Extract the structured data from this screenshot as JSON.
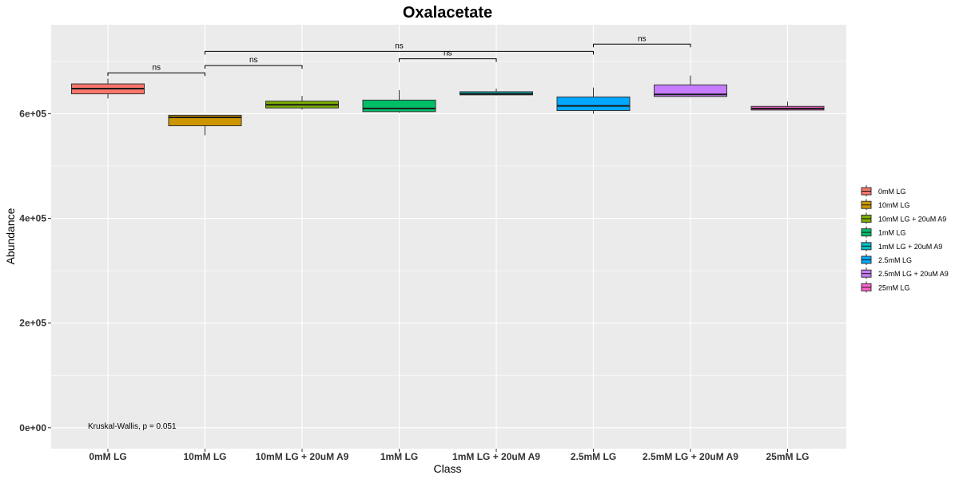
{
  "chart_data": {
    "type": "box",
    "title": "Oxalacetate",
    "xlabel": "Class",
    "ylabel": "Abundance",
    "ylim": [
      -40000,
      770000
    ],
    "y_ticks": [
      0,
      200000,
      400000,
      600000
    ],
    "y_tick_labels": [
      "0e+00",
      "2e+05",
      "4e+05",
      "6e+05"
    ],
    "grid": true,
    "legend_position": "right",
    "categories": [
      "0mM LG",
      "10mM LG",
      "10mM LG + 20uM A9",
      "1mM LG",
      "1mM LG + 20uM A9",
      "2.5mM LG",
      "2.5mM LG + 20uM A9",
      "25mM LG"
    ],
    "series": [
      {
        "name": "0mM LG",
        "color": "#F8766D",
        "min": 629000,
        "q1": 638000,
        "median": 648000,
        "q3": 657000,
        "max": 667000
      },
      {
        "name": "10mM LG",
        "color": "#CD9600",
        "min": 559000,
        "q1": 577000,
        "median": 593000,
        "q3": 597000,
        "max": 598000
      },
      {
        "name": "10mM LG + 20uM A9",
        "color": "#7CAE00",
        "min": 608000,
        "q1": 611000,
        "median": 617000,
        "q3": 624000,
        "max": 634000
      },
      {
        "name": "1mM LG",
        "color": "#00BE67",
        "min": 602000,
        "q1": 604000,
        "median": 610000,
        "q3": 626000,
        "max": 645000
      },
      {
        "name": "1mM LG + 20uM A9",
        "color": "#00BFC4",
        "min": 635000,
        "q1": 636000,
        "median": 638000,
        "q3": 642000,
        "max": 648000
      },
      {
        "name": "2.5mM LG",
        "color": "#00A9FF",
        "min": 600000,
        "q1": 606000,
        "median": 615000,
        "q3": 632000,
        "max": 650000
      },
      {
        "name": "2.5mM LG + 20uM A9",
        "color": "#C77CFF",
        "min": 632000,
        "q1": 633000,
        "median": 637000,
        "q3": 655000,
        "max": 673000
      },
      {
        "name": "25mM LG",
        "color": "#FF61CC",
        "min": 606000,
        "q1": 607000,
        "median": 610000,
        "q3": 614000,
        "max": 623000
      }
    ],
    "comparisons": [
      {
        "from": 0,
        "to": 1,
        "y": 678000,
        "label": "ns"
      },
      {
        "from": 1,
        "to": 2,
        "y": 692000,
        "label": "ns"
      },
      {
        "from": 3,
        "to": 4,
        "y": 705000,
        "label": "ns"
      },
      {
        "from": 1,
        "to": 5,
        "y": 719000,
        "label": "ns"
      },
      {
        "from": 5,
        "to": 6,
        "y": 733000,
        "label": "ns"
      }
    ],
    "annotation": "Kruskal-Wallis, p = 0.051"
  }
}
